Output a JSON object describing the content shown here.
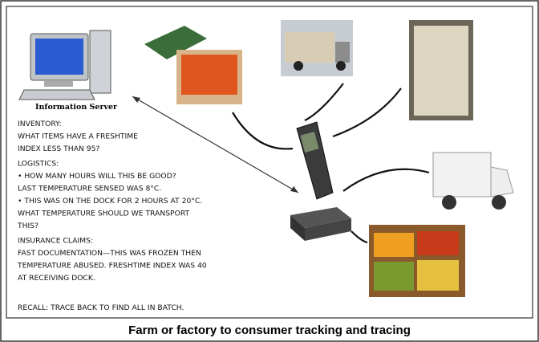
{
  "server_label": "Information Server",
  "sections": [
    {
      "heading": "INVENTORY:",
      "lines": [
        "WHAT ITEMS HAVE A FRESHTIME",
        "INDEX LESS THAN 95?"
      ]
    },
    {
      "heading": "LOGISTICS:",
      "lines": [
        "•  HOW MANY HOURS WILL THIS BE GOOD?",
        "LAST TEMPERATURE SENSED WAS 8°C.",
        "• THIS WAS ON THE DOCK FOR 2 HOURS AT 20°C.",
        "WHAT TEMPERATURE SHOULD WE TRANSPORT",
        "THIS?"
      ]
    },
    {
      "heading": "INSURANCE CLAIMS:",
      "lines": [
        "FAST DOCUMENTATION—THIS WAS FROZEN THEN",
        "TEMPERATURE ABUSED.  FRESHTIME INDEX WAS 40",
        "AT RECEIVING DOCK."
      ]
    }
  ],
  "recall": "RECALL: TRACE BACK TO FIND ALL IN BATCH.",
  "caption": "Farm or factory to consumer tracking and tracing"
}
